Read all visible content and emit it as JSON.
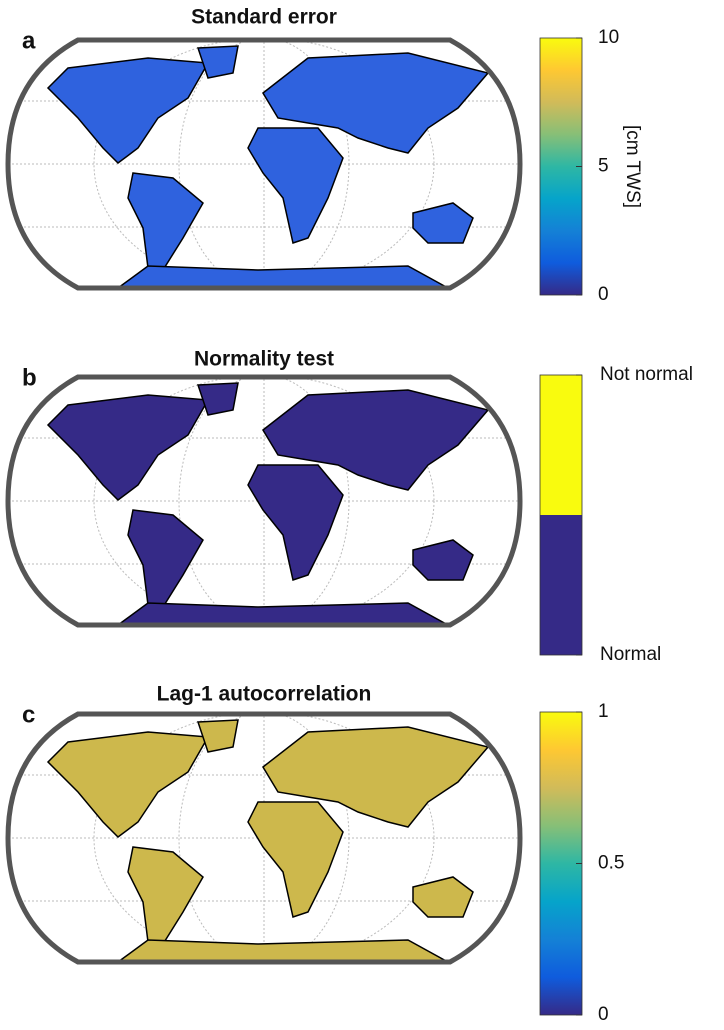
{
  "panels": [
    {
      "letter": "a",
      "title": "Standard error",
      "land_color": "#2f62de",
      "colorbar": {
        "type": "continuous",
        "lim": [
          0,
          10
        ],
        "ticks": [
          0,
          5,
          10
        ],
        "label": "[cm TWS]",
        "colors": [
          "#352a87",
          "#0f5cdd",
          "#1481d6",
          "#06a4ca",
          "#2eb7a4",
          "#87bf77",
          "#d1bb59",
          "#fec832",
          "#f9fb0e"
        ]
      }
    },
    {
      "letter": "b",
      "title": "Normality test",
      "land_color": "#352a87",
      "colorbar": {
        "type": "discrete",
        "lim": [
          0,
          2
        ],
        "ticks": [
          {
            "value": 0,
            "label": "Normal"
          },
          {
            "value": 2,
            "label": "Not normal"
          }
        ],
        "colors": [
          "#352a87",
          "#f9fb0e"
        ]
      }
    },
    {
      "letter": "c",
      "title": "Lag-1 autocorrelation",
      "land_color": "#cdb84c",
      "colorbar": {
        "type": "continuous",
        "lim": [
          0,
          1
        ],
        "ticks": [
          0,
          0.5,
          1
        ],
        "colors": [
          "#352a87",
          "#0f5cdd",
          "#1481d6",
          "#06a4ca",
          "#2eb7a4",
          "#87bf77",
          "#d1bb59",
          "#fec832",
          "#f9fb0e"
        ]
      }
    }
  ]
}
